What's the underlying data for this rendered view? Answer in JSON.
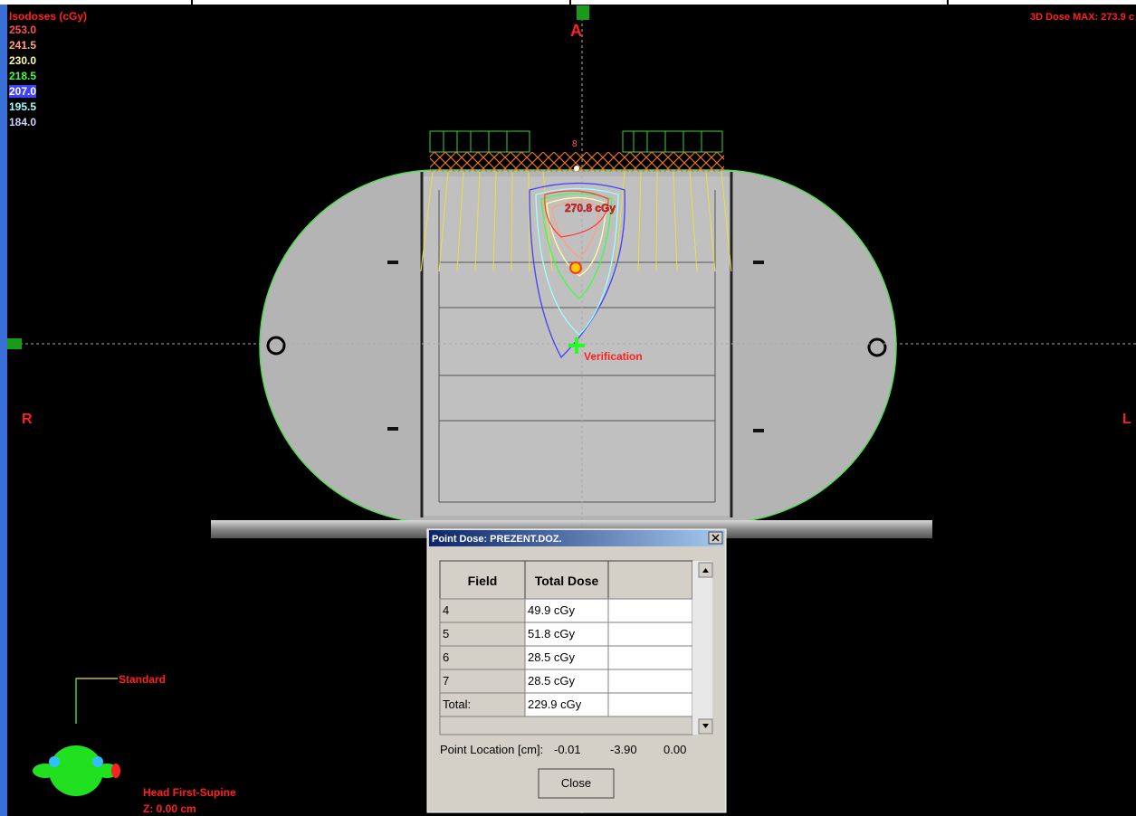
{
  "legend": {
    "title": "Isodoses (cGy)",
    "levels": [
      {
        "label": "253.0",
        "color": "#ff5050"
      },
      {
        "label": "241.5",
        "color": "#ffa080"
      },
      {
        "label": "230.0",
        "color": "#ffffa0"
      },
      {
        "label": "218.5",
        "color": "#40ff40"
      },
      {
        "label": "207.0",
        "color": "#4040ff"
      },
      {
        "label": "195.5",
        "color": "#a0ffff"
      },
      {
        "label": "184.0",
        "color": "#d0d0ff"
      }
    ]
  },
  "viewport": {
    "max_dose": "3D Dose MAX: 273.9 c",
    "anterior": "A",
    "right": "R",
    "left": "L",
    "beam_label": "8",
    "hotspot": "270.8 cGy",
    "point": "Verification",
    "orientation": "Standard",
    "position": "Head First-Supine",
    "z": "Z: 0.00 cm"
  },
  "dialog": {
    "title": "Point Dose: PREZENT.DOZ.",
    "table": {
      "headers": [
        "Field",
        "Total Dose"
      ],
      "rows": [
        [
          "4",
          "49.9 cGy"
        ],
        [
          "5",
          "51.8 cGy"
        ],
        [
          "6",
          "28.5 cGy"
        ],
        [
          "7",
          "28.5 cGy"
        ],
        [
          "Total:",
          "229.9 cGy"
        ]
      ]
    },
    "location": {
      "label": "Point Location [cm]:",
      "values": [
        "-0.01",
        "-3.90",
        "0.00"
      ]
    },
    "button": "Close"
  }
}
